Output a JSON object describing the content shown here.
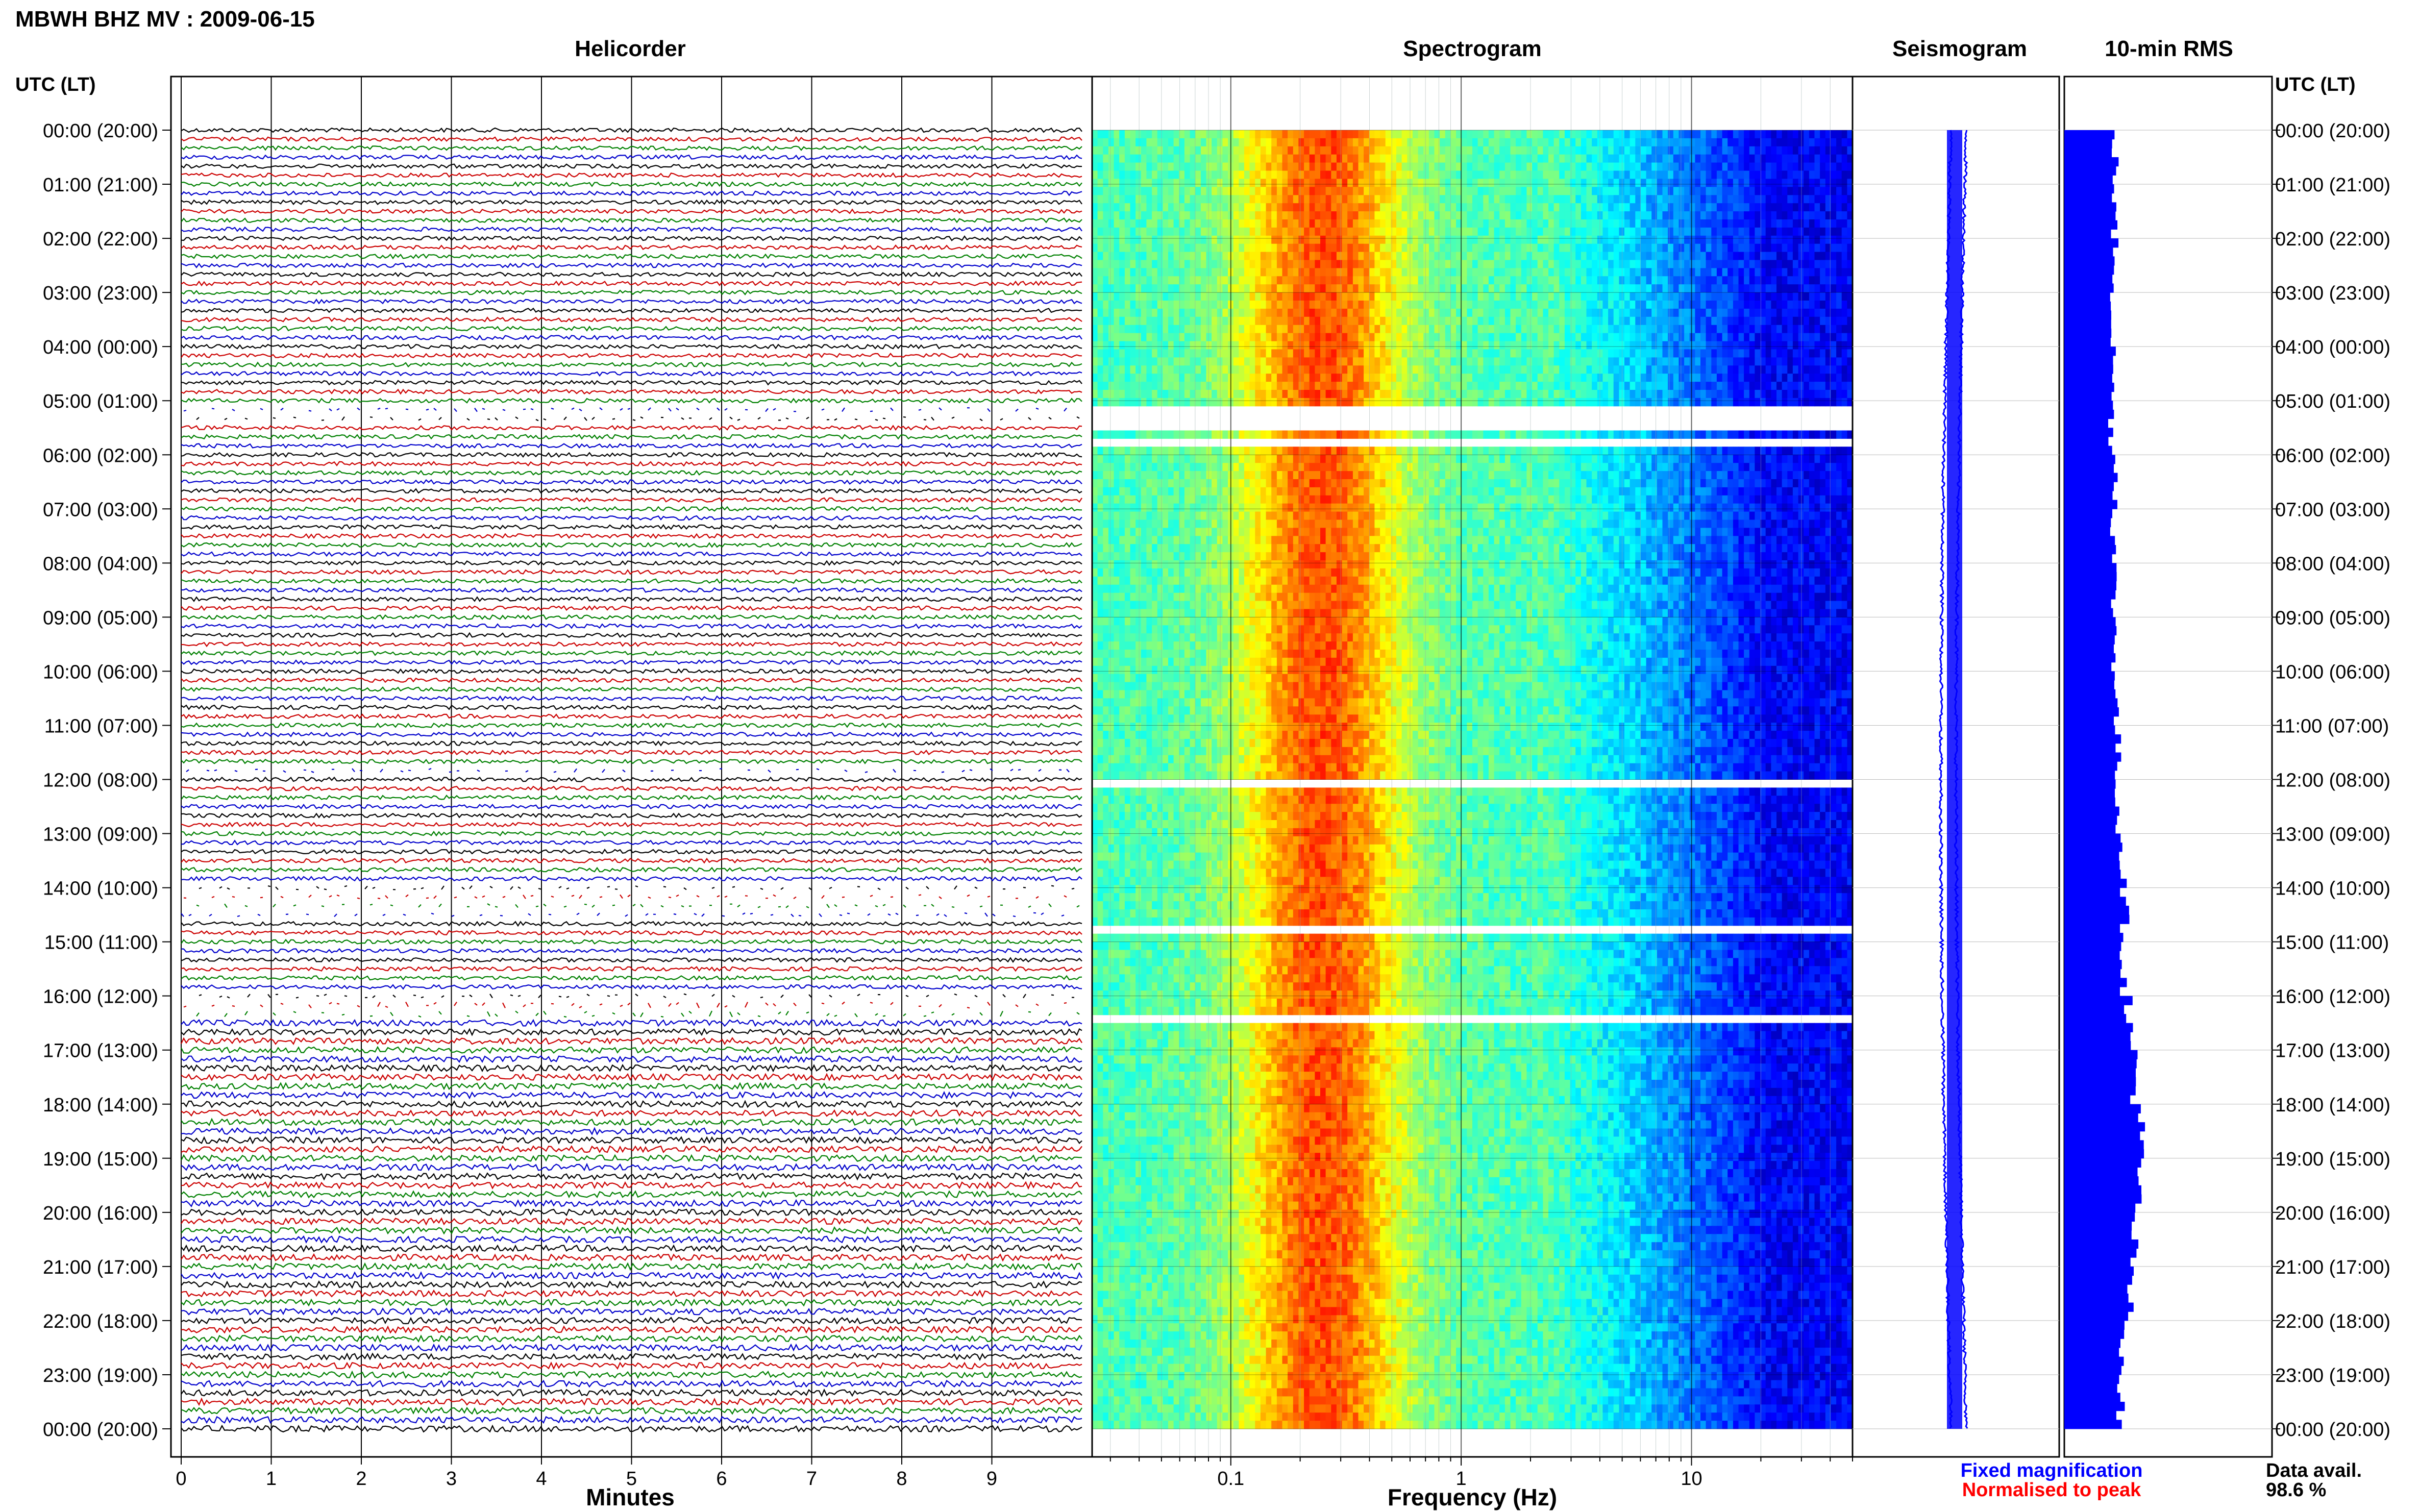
{
  "header": {
    "station_title": "MBWH BHZ MV : 2009-06-15"
  },
  "panels": {
    "helicorder": {
      "title": "Helicorder",
      "xlabel": "Minutes"
    },
    "spectrogram": {
      "title": "Spectrogram",
      "xlabel": "Frequency (Hz)"
    },
    "seismogram": {
      "title": "Seismogram"
    },
    "rms": {
      "title": "10-min RMS"
    }
  },
  "axis_headers": {
    "left": "UTC (LT)",
    "right": "UTC (LT)"
  },
  "time_labels": [
    "00:00 (20:00)",
    "01:00 (21:00)",
    "02:00 (22:00)",
    "03:00 (23:00)",
    "04:00 (00:00)",
    "05:00 (01:00)",
    "06:00 (02:00)",
    "07:00 (03:00)",
    "08:00 (04:00)",
    "09:00 (05:00)",
    "10:00 (06:00)",
    "11:00 (07:00)",
    "12:00 (08:00)",
    "13:00 (09:00)",
    "14:00 (10:00)",
    "15:00 (11:00)",
    "16:00 (12:00)",
    "17:00 (13:00)",
    "18:00 (14:00)",
    "19:00 (15:00)",
    "20:00 (16:00)",
    "21:00 (17:00)",
    "22:00 (18:00)",
    "23:00 (19:00)",
    "00:00 (20:00)"
  ],
  "footer": {
    "legend_fixed": "Fixed magnification",
    "legend_normalised": "Normalised to peak",
    "data_avail_label": "Data avail.",
    "data_avail_value": "98.6 %"
  },
  "colors": {
    "trace_cycle": [
      "#000000",
      "#cc0000",
      "#008000",
      "#0000cc"
    ],
    "legend_fixed": "#0000ff",
    "legend_normalised": "#ff0000",
    "rms_bar": "#0000ff",
    "seismogram": "#0000ff",
    "grid": "#000000"
  },
  "chart_data": [
    {
      "type": "line",
      "name": "helicorder",
      "traces_per_hour": 6,
      "hours": 24,
      "x_ticks": [
        "0",
        "1",
        "2",
        "3",
        "4",
        "5",
        "6",
        "7",
        "8",
        "9"
      ],
      "xlim": [
        0,
        10
      ],
      "gaps_hour_fraction": [
        [
          5.05,
          5.5
        ],
        [
          11.8,
          12.0
        ],
        [
          14.0,
          14.6
        ],
        [
          15.9,
          16.5
        ]
      ]
    },
    {
      "type": "heatmap",
      "name": "spectrogram",
      "xscale": "log",
      "xlim": [
        0.025,
        50
      ],
      "x_ticks": [
        "0.1",
        "1",
        "10"
      ],
      "x_tick_values": [
        0.1,
        1,
        10
      ],
      "ylim_hours": [
        0,
        24
      ],
      "gaps_hours": [
        [
          5.05,
          5.5
        ],
        [
          5.7,
          5.8
        ],
        [
          12.05,
          12.15
        ],
        [
          14.7,
          14.8
        ],
        [
          16.3,
          16.45
        ]
      ]
    },
    {
      "type": "line",
      "name": "seismogram",
      "ylim_hours": [
        0,
        24
      ]
    },
    {
      "type": "bar",
      "name": "10-min RMS",
      "orientation": "horizontal",
      "intervals": 144,
      "ylim_hours": [
        0,
        24
      ],
      "values_relative_per_hour": [
        0.47,
        0.46,
        0.47,
        0.45,
        0.45,
        0.44,
        0.48,
        0.46,
        0.46,
        0.47,
        0.48,
        0.49,
        0.5,
        0.54,
        0.56,
        0.55,
        0.6,
        0.66,
        0.7,
        0.68,
        0.64,
        0.6,
        0.55,
        0.52
      ]
    }
  ]
}
